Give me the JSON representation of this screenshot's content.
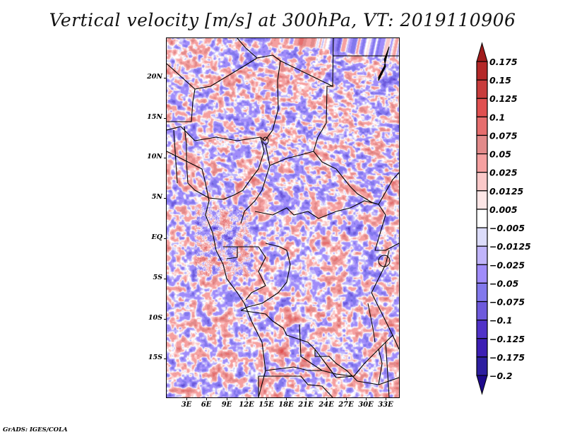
{
  "title": "Vertical velocity [m/s] at 300hPa, VT: 2019110906",
  "footer": "GrADS: IGES/COLA",
  "chart_data": {
    "type": "heatmap",
    "title": "Vertical velocity [m/s] at 300hPa, VT: 2019110906",
    "variable": "Vertical velocity",
    "units": "m/s",
    "level": "300hPa",
    "valid_time": "2019110906",
    "projection": "lat-lon",
    "lon_range": [
      0,
      35
    ],
    "lat_range": [
      -19.8,
      24.9
    ],
    "x_ticks": [
      "3E",
      "6E",
      "9E",
      "12E",
      "15E",
      "18E",
      "21E",
      "24E",
      "27E",
      "30E",
      "33E"
    ],
    "x_tick_values": [
      3,
      6,
      9,
      12,
      15,
      18,
      21,
      24,
      27,
      30,
      33
    ],
    "y_ticks": [
      "20N",
      "15N",
      "10N",
      "5N",
      "EQ",
      "5S",
      "10S",
      "15S"
    ],
    "y_tick_values": [
      20,
      15,
      10,
      5,
      0,
      -5,
      -10,
      -15
    ],
    "colorbar": {
      "placement": "right",
      "orientation": "vertical",
      "extend": "both",
      "levels": [
        0.175,
        0.15,
        0.125,
        0.1,
        0.075,
        0.05,
        0.025,
        0.0125,
        0.005,
        -0.005,
        -0.0125,
        -0.025,
        -0.05,
        -0.075,
        -0.1,
        -0.125,
        -0.175,
        -0.2
      ],
      "labels": [
        "0.175",
        "0.15",
        "0.125",
        "0.1",
        "0.075",
        "0.05",
        "0.025",
        "0.0125",
        "0.005",
        "−0.005",
        "−0.0125",
        "−0.025",
        "−0.05",
        "−0.075",
        "−0.1",
        "−0.125",
        "−0.175",
        "−0.2"
      ],
      "colors": [
        "#a01c1c",
        "#b42828",
        "#c83c3c",
        "#e05050",
        "#e66e6e",
        "#e28a8a",
        "#f5a0a0",
        "#fac8c8",
        "#fde6e6",
        "#ffffff",
        "#dcdcfa",
        "#c0b4fa",
        "#a08cfa",
        "#8278ec",
        "#6e5adc",
        "#5032c8",
        "#3c1eb4",
        "#2d1ea0",
        "#1e0a8c"
      ]
    },
    "notes": "Filled contour field of vertical velocity over Central Africa with country borders; mixed small-scale positive (red) and negative (blue) regions."
  }
}
